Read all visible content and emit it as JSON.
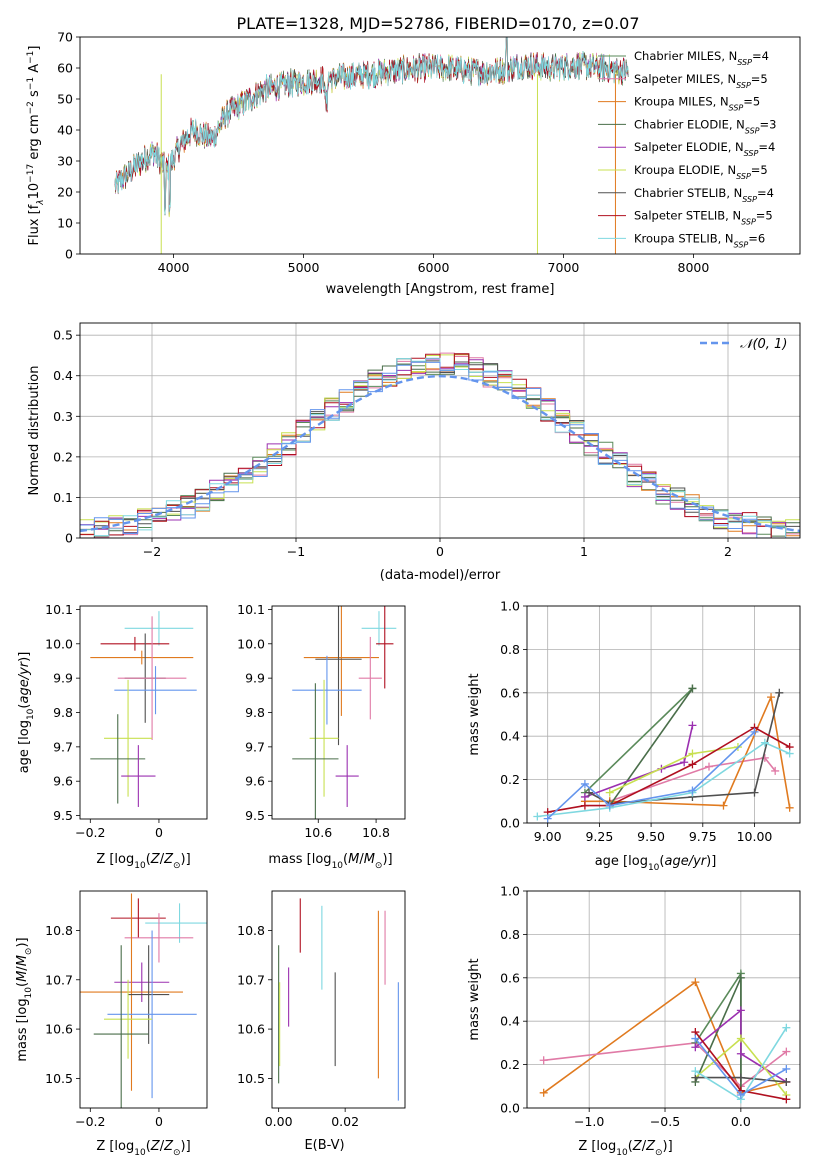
{
  "figure_title": "PLATE=1328, MJD=52786, FIBERID=0170, z=0.07",
  "colors": {
    "chabrier_miles": "#5a8a5a",
    "salpeter_miles": "#e07aa6",
    "kroupa_miles": "#e07a1f",
    "chabrier_elodie": "#4a6e4a",
    "salpeter_elodie": "#9b30b0",
    "kroupa_elodie": "#c8e050",
    "chabrier_stelib": "#505050",
    "salpeter_stelib": "#b01020",
    "kroupa_stelib": "#7fd8e0",
    "normal": "#6495ed",
    "grid": "#b0b0b0"
  },
  "chart_data": [
    {
      "id": "spectrum",
      "type": "line",
      "xlabel": "wavelength [Angstrom, rest frame]",
      "ylabel_parts": [
        "Flux [f",
        "λ",
        "10",
        "−17",
        " erg cm",
        "−2",
        " s",
        "−1",
        " A",
        "−1",
        "]"
      ],
      "xlim": [
        3280,
        8820
      ],
      "ylim": [
        0,
        70
      ],
      "xticks": [
        4000,
        5000,
        6000,
        7000,
        8000
      ],
      "yticks": [
        0,
        10,
        20,
        30,
        40,
        50,
        60,
        70
      ],
      "legend_location": "upper right",
      "continuum_x": [
        3550,
        3700,
        3850,
        3950,
        4050,
        4150,
        4300,
        4400,
        4550,
        4700,
        4900,
        5100,
        5300,
        5500,
        5700,
        5900,
        6100,
        6300,
        6500,
        6700,
        6900,
        7100,
        7300,
        7500
      ],
      "continuum_y": [
        22,
        28,
        33,
        27,
        35,
        40,
        37,
        45,
        49,
        53,
        55,
        56,
        57,
        58,
        59,
        60,
        60,
        59,
        59,
        61,
        60,
        61,
        60,
        59
      ],
      "series": [
        {
          "key": "chabrier_miles",
          "legend": "Chabrier MILES, N",
          "sub": "SSP",
          "n": "=4"
        },
        {
          "key": "salpeter_miles",
          "legend": "Salpeter MILES, N",
          "sub": "SSP",
          "n": "=5"
        },
        {
          "key": "kroupa_miles",
          "legend": "Kroupa MILES, N",
          "sub": "SSP",
          "n": "=5"
        },
        {
          "key": "chabrier_elodie",
          "legend": "Chabrier ELODIE, N",
          "sub": "SSP",
          "n": "=3"
        },
        {
          "key": "salpeter_elodie",
          "legend": "Salpeter ELODIE, N",
          "sub": "SSP",
          "n": "=4"
        },
        {
          "key": "kroupa_elodie",
          "legend": "Kroupa ELODIE, N",
          "sub": "SSP",
          "n": "=5"
        },
        {
          "key": "chabrier_stelib",
          "legend": "Chabrier STELIB, N",
          "sub": "SSP",
          "n": "=4"
        },
        {
          "key": "salpeter_stelib",
          "legend": "Salpeter STELIB, N",
          "sub": "SSP",
          "n": "=5"
        },
        {
          "key": "kroupa_stelib",
          "legend": "Kroupa STELIB, N",
          "sub": "SSP",
          "n": "=6"
        }
      ]
    },
    {
      "id": "residuals",
      "type": "step-histogram",
      "xlabel": "(data-model)/error",
      "ylabel": "Normed distribution",
      "xlim": [
        -2.5,
        2.5
      ],
      "ylim": [
        0,
        0.53
      ],
      "xticks": [
        -2,
        -1,
        0,
        1,
        2
      ],
      "yticks": [
        0.0,
        0.1,
        0.2,
        0.3,
        0.4,
        0.5
      ],
      "grid": true,
      "legend_label": "𝒩(0, 1)",
      "legend_location": "upper right",
      "bin_width": 0.1
    },
    {
      "id": "z_age",
      "type": "errorbar",
      "xlabel": "Z [log10(Z/Z⊙)]",
      "ylabel": "age  [log10(age/yr)]",
      "xlim": [
        -0.23,
        0.14
      ],
      "ylim": [
        9.49,
        10.11
      ],
      "xticks": [
        -0.2,
        0.0
      ],
      "yticks": [
        9.5,
        9.6,
        9.7,
        9.8,
        9.9,
        10.0,
        10.1
      ],
      "points": [
        {
          "key": "kroupa_stelib",
          "x": 0.0,
          "xerr": 0.1,
          "y": 10.045,
          "yerr": 0.05
        },
        {
          "key": "salpeter_stelib",
          "x": -0.07,
          "xerr": 0.1,
          "y": 10.0,
          "yerr": 0.02
        },
        {
          "key": "kroupa_miles",
          "x": -0.05,
          "xerr": 0.15,
          "y": 9.96,
          "yerr": 0.02
        },
        {
          "key": "chabrier_stelib",
          "x": -0.04,
          "xerr": 0.06,
          "y": 9.9,
          "yerr": 0.13
        },
        {
          "key": "salpeter_miles",
          "x": -0.02,
          "xerr": 0.1,
          "y": 9.9,
          "yerr": 0.18
        },
        {
          "key": "normal",
          "x": -0.01,
          "xerr": 0.12,
          "y": 9.865,
          "yerr": 0.07
        },
        {
          "key": "kroupa_elodie",
          "x": -0.09,
          "xerr": 0.07,
          "y": 9.725,
          "yerr": 0.17
        },
        {
          "key": "chabrier_elodie",
          "x": -0.12,
          "xerr": 0.08,
          "y": 9.665,
          "yerr": 0.13
        },
        {
          "key": "salpeter_elodie",
          "x": -0.06,
          "xerr": 0.05,
          "y": 9.615,
          "yerr": 0.09
        }
      ]
    },
    {
      "id": "mass_age",
      "type": "errorbar",
      "xlabel": "mass [log10(M/M⊙)]",
      "ylabel": "",
      "xlim": [
        10.44,
        10.9
      ],
      "ylim": [
        9.49,
        10.11
      ],
      "xticks": [
        10.6,
        10.8
      ],
      "yticks": [
        9.5,
        9.6,
        9.7,
        9.8,
        9.9,
        10.0,
        10.1
      ],
      "points": [
        {
          "key": "kroupa_stelib",
          "x": 10.81,
          "xerr": 0.06,
          "y": 10.045,
          "yerr": 0.05
        },
        {
          "key": "salpeter_stelib",
          "x": 10.83,
          "xerr": 0.03,
          "y": 10.0,
          "yerr": 0.13
        },
        {
          "key": "kroupa_miles",
          "x": 10.68,
          "xerr": 0.13,
          "y": 9.96,
          "yerr": 0.17
        },
        {
          "key": "chabrier_stelib",
          "x": 10.67,
          "xerr": 0.08,
          "y": 9.955,
          "yerr": 0.25
        },
        {
          "key": "salpeter_miles",
          "x": 10.78,
          "xerr": 0.04,
          "y": 9.9,
          "yerr": 0.12
        },
        {
          "key": "normal",
          "x": 10.63,
          "xerr": 0.12,
          "y": 9.865,
          "yerr": 0.1
        },
        {
          "key": "kroupa_elodie",
          "x": 10.62,
          "xerr": 0.05,
          "y": 9.725,
          "yerr": 0.17
        },
        {
          "key": "chabrier_elodie",
          "x": 10.59,
          "xerr": 0.08,
          "y": 9.665,
          "yerr": 0.22
        },
        {
          "key": "salpeter_elodie",
          "x": 10.7,
          "xerr": 0.04,
          "y": 9.615,
          "yerr": 0.09
        }
      ]
    },
    {
      "id": "weight_age",
      "type": "line",
      "xlabel": "age  [log10(age/yr)]",
      "ylabel": "mass weight",
      "xlim": [
        8.9,
        10.22
      ],
      "ylim": [
        0,
        1
      ],
      "xticks": [
        9.0,
        9.25,
        9.5,
        9.75,
        10.0
      ],
      "xticklabels": [
        "9.00",
        "9.25",
        "9.50",
        "9.75",
        "10.00"
      ],
      "yticks": [
        0.0,
        0.2,
        0.4,
        0.6,
        0.8,
        1.0
      ],
      "grid": true,
      "series": [
        {
          "key": "chabrier_miles",
          "x": [
            9.18,
            9.7
          ],
          "y": [
            0.14,
            0.62
          ]
        },
        {
          "key": "salpeter_miles",
          "x": [
            9.3,
            9.78,
            10.05,
            10.1
          ],
          "y": [
            0.1,
            0.26,
            0.3,
            0.24
          ]
        },
        {
          "key": "kroupa_miles",
          "x": [
            9.18,
            9.3,
            9.85,
            10.08,
            10.17
          ],
          "y": [
            0.1,
            0.1,
            0.08,
            0.58,
            0.07
          ]
        },
        {
          "key": "chabrier_elodie",
          "x": [
            9.3,
            9.7
          ],
          "y": [
            0.08,
            0.62
          ]
        },
        {
          "key": "salpeter_elodie",
          "x": [
            9.18,
            9.55,
            9.66,
            9.7
          ],
          "y": [
            0.12,
            0.25,
            0.28,
            0.45
          ]
        },
        {
          "key": "kroupa_elodie",
          "x": [
            9.3,
            9.7,
            9.92
          ],
          "y": [
            0.14,
            0.32,
            0.35
          ]
        },
        {
          "key": "chabrier_stelib",
          "x": [
            9.2,
            9.3,
            9.7,
            10.0,
            10.12
          ],
          "y": [
            0.14,
            0.09,
            0.12,
            0.14,
            0.6
          ]
        },
        {
          "key": "salpeter_stelib",
          "x": [
            9.0,
            9.18,
            9.3,
            9.7,
            10.0,
            10.17
          ],
          "y": [
            0.05,
            0.08,
            0.08,
            0.27,
            0.44,
            0.35
          ]
        },
        {
          "key": "kroupa_stelib",
          "x": [
            8.95,
            9.3,
            9.7,
            10.05,
            10.17
          ],
          "y": [
            0.03,
            0.07,
            0.14,
            0.37,
            0.32
          ]
        },
        {
          "key": "normal",
          "x": [
            9.0,
            9.18,
            9.3,
            9.7,
            10.0
          ],
          "y": [
            0.02,
            0.18,
            0.08,
            0.15,
            0.42
          ]
        }
      ]
    },
    {
      "id": "z_mass",
      "type": "errorbar",
      "xlabel": "Z [log10(Z/Z⊙)]",
      "ylabel": "mass [log10(M/M⊙)]",
      "xlim": [
        -0.23,
        0.14
      ],
      "ylim": [
        10.44,
        10.88
      ],
      "xticks": [
        -0.2,
        0.0
      ],
      "yticks": [
        10.5,
        10.6,
        10.7,
        10.8
      ],
      "points": [
        {
          "key": "salpeter_stelib",
          "x": -0.06,
          "xerr": 0.08,
          "y": 10.825,
          "yerr": 0.04
        },
        {
          "key": "kroupa_stelib",
          "x": 0.06,
          "xerr": 0.1,
          "y": 10.815,
          "yerr": 0.04
        },
        {
          "key": "salpeter_miles",
          "x": 0.0,
          "xerr": 0.1,
          "y": 10.785,
          "yerr": 0.05
        },
        {
          "key": "salpeter_elodie",
          "x": -0.05,
          "xerr": 0.08,
          "y": 10.695,
          "yerr": 0.04
        },
        {
          "key": "kroupa_miles",
          "x": -0.08,
          "xerr": 0.15,
          "y": 10.675,
          "yerr": 0.2
        },
        {
          "key": "chabrier_stelib",
          "x": -0.03,
          "xerr": 0.06,
          "y": 10.67,
          "yerr": 0.1
        },
        {
          "key": "normal",
          "x": -0.02,
          "xerr": 0.13,
          "y": 10.63,
          "yerr": 0.17
        },
        {
          "key": "kroupa_elodie",
          "x": -0.09,
          "xerr": 0.07,
          "y": 10.62,
          "yerr": 0.08
        },
        {
          "key": "chabrier_elodie",
          "x": -0.11,
          "xerr": 0.08,
          "y": 10.59,
          "yerr": 0.18
        }
      ]
    },
    {
      "id": "ebv_mass",
      "type": "errorbar",
      "xlabel": "E(B-V)",
      "ylabel": "",
      "xlim": [
        -0.002,
        0.038
      ],
      "ylim": [
        10.44,
        10.88
      ],
      "xticks": [
        0.0,
        0.02
      ],
      "xticklabels": [
        "0.00",
        "0.02"
      ],
      "yticks": [
        10.5,
        10.6,
        10.7,
        10.8
      ],
      "points": [
        {
          "key": "salpeter_stelib",
          "x": 0.0065,
          "yerr": 0.055,
          "y": 10.81
        },
        {
          "key": "kroupa_stelib",
          "x": 0.013,
          "yerr": 0.085,
          "y": 10.765
        },
        {
          "key": "salpeter_miles",
          "x": 0.032,
          "yerr": 0.075,
          "y": 10.765
        },
        {
          "key": "kroupa_miles",
          "x": 0.03,
          "yerr": 0.17,
          "y": 10.67
        },
        {
          "key": "chabrier_elodie",
          "x": 0.0,
          "yerr": 0.14,
          "y": 10.63
        },
        {
          "key": "kroupa_elodie",
          "x": 0.0003,
          "yerr": 0.085,
          "y": 10.61
        },
        {
          "key": "salpeter_elodie",
          "x": 0.003,
          "yerr": 0.06,
          "y": 10.665
        },
        {
          "key": "chabrier_stelib",
          "x": 0.017,
          "yerr": 0.095,
          "y": 10.62
        },
        {
          "key": "normal",
          "x": 0.036,
          "yerr": 0.12,
          "y": 10.575
        }
      ]
    },
    {
      "id": "weight_z",
      "type": "line",
      "xlabel": "Z [log10(Z/Z⊙)]",
      "ylabel": "mass weight",
      "xlim": [
        -1.41,
        0.39
      ],
      "ylim": [
        0,
        1
      ],
      "xticks": [
        -1.0,
        -0.5,
        0.0
      ],
      "xticklabels": [
        "−1.0",
        "−0.5",
        "0.0"
      ],
      "yticks": [
        0.0,
        0.2,
        0.4,
        0.6,
        0.8,
        1.0
      ],
      "grid": true,
      "series": [
        {
          "key": "kroupa_miles",
          "x": [
            -1.3,
            -0.3,
            0.0,
            0.3
          ],
          "y": [
            0.07,
            0.58,
            0.07,
            0.12
          ]
        },
        {
          "key": "salpeter_miles",
          "x": [
            -1.3,
            -0.3,
            0.0,
            0.3
          ],
          "y": [
            0.22,
            0.3,
            0.1,
            0.26
          ]
        },
        {
          "key": "chabrier_miles",
          "x": [
            -0.3,
            0.0,
            0.0
          ],
          "y": [
            0.3,
            0.62,
            0.08
          ]
        },
        {
          "key": "chabrier_elodie",
          "x": [
            -0.3,
            0.0,
            0.0
          ],
          "y": [
            0.12,
            0.6,
            0.08
          ]
        },
        {
          "key": "salpeter_elodie",
          "x": [
            -0.3,
            0.0,
            0.0,
            0.3
          ],
          "y": [
            0.28,
            0.45,
            0.25,
            0.12
          ]
        },
        {
          "key": "kroupa_elodie",
          "x": [
            -0.3,
            0.0,
            0.3
          ],
          "y": [
            0.14,
            0.32,
            0.06
          ]
        },
        {
          "key": "chabrier_stelib",
          "x": [
            -0.3,
            0.0,
            0.3
          ],
          "y": [
            0.14,
            0.14,
            0.12
          ]
        },
        {
          "key": "salpeter_stelib",
          "x": [
            -0.3,
            0.0,
            0.3
          ],
          "y": [
            0.35,
            0.08,
            0.04
          ]
        },
        {
          "key": "kroupa_stelib",
          "x": [
            -0.3,
            0.0,
            0.3
          ],
          "y": [
            0.17,
            0.04,
            0.37
          ]
        },
        {
          "key": "normal",
          "x": [
            -0.3,
            0.0,
            0.3
          ],
          "y": [
            0.32,
            0.06,
            0.18
          ]
        }
      ]
    }
  ]
}
